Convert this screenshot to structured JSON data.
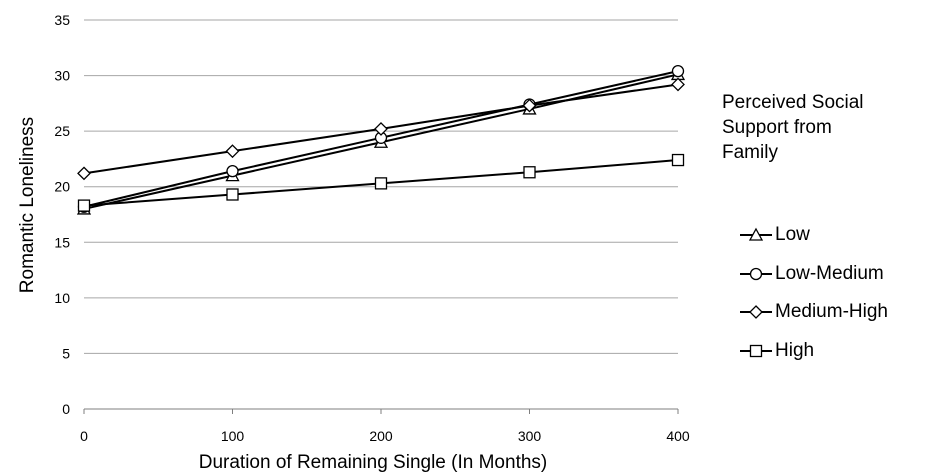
{
  "chart_data": {
    "type": "line",
    "title": "",
    "xlabel": "Duration of Remaining Single (In Months)",
    "ylabel": "Romantic Loneliness",
    "x": [
      0,
      100,
      200,
      300,
      400
    ],
    "xlim": [
      0,
      400
    ],
    "ylim": [
      0,
      35
    ],
    "xticks": [
      "0",
      "100",
      "200",
      "300",
      "400"
    ],
    "yticks": [
      "0",
      "5",
      "10",
      "15",
      "20",
      "25",
      "30",
      "35"
    ],
    "grid": "horizontal",
    "legend": {
      "title_lines": [
        "Perceived Social",
        "Support from",
        "Family"
      ],
      "placement": "right"
    },
    "series": [
      {
        "name": "Low",
        "marker": "triangle",
        "values": [
          18.0,
          21.0,
          24.0,
          27.0,
          30.1
        ]
      },
      {
        "name": "Low-Medium",
        "marker": "circle",
        "values": [
          18.2,
          21.4,
          24.4,
          27.4,
          30.4
        ]
      },
      {
        "name": "Medium-High",
        "marker": "diamond",
        "values": [
          21.2,
          23.2,
          25.2,
          27.3,
          29.2
        ]
      },
      {
        "name": "High",
        "marker": "square",
        "values": [
          18.3,
          19.3,
          20.3,
          21.3,
          22.4
        ]
      }
    ],
    "colors": {
      "line": "#000000",
      "grid": "#a6a6a6",
      "marker_fill": "#ffffff"
    }
  }
}
